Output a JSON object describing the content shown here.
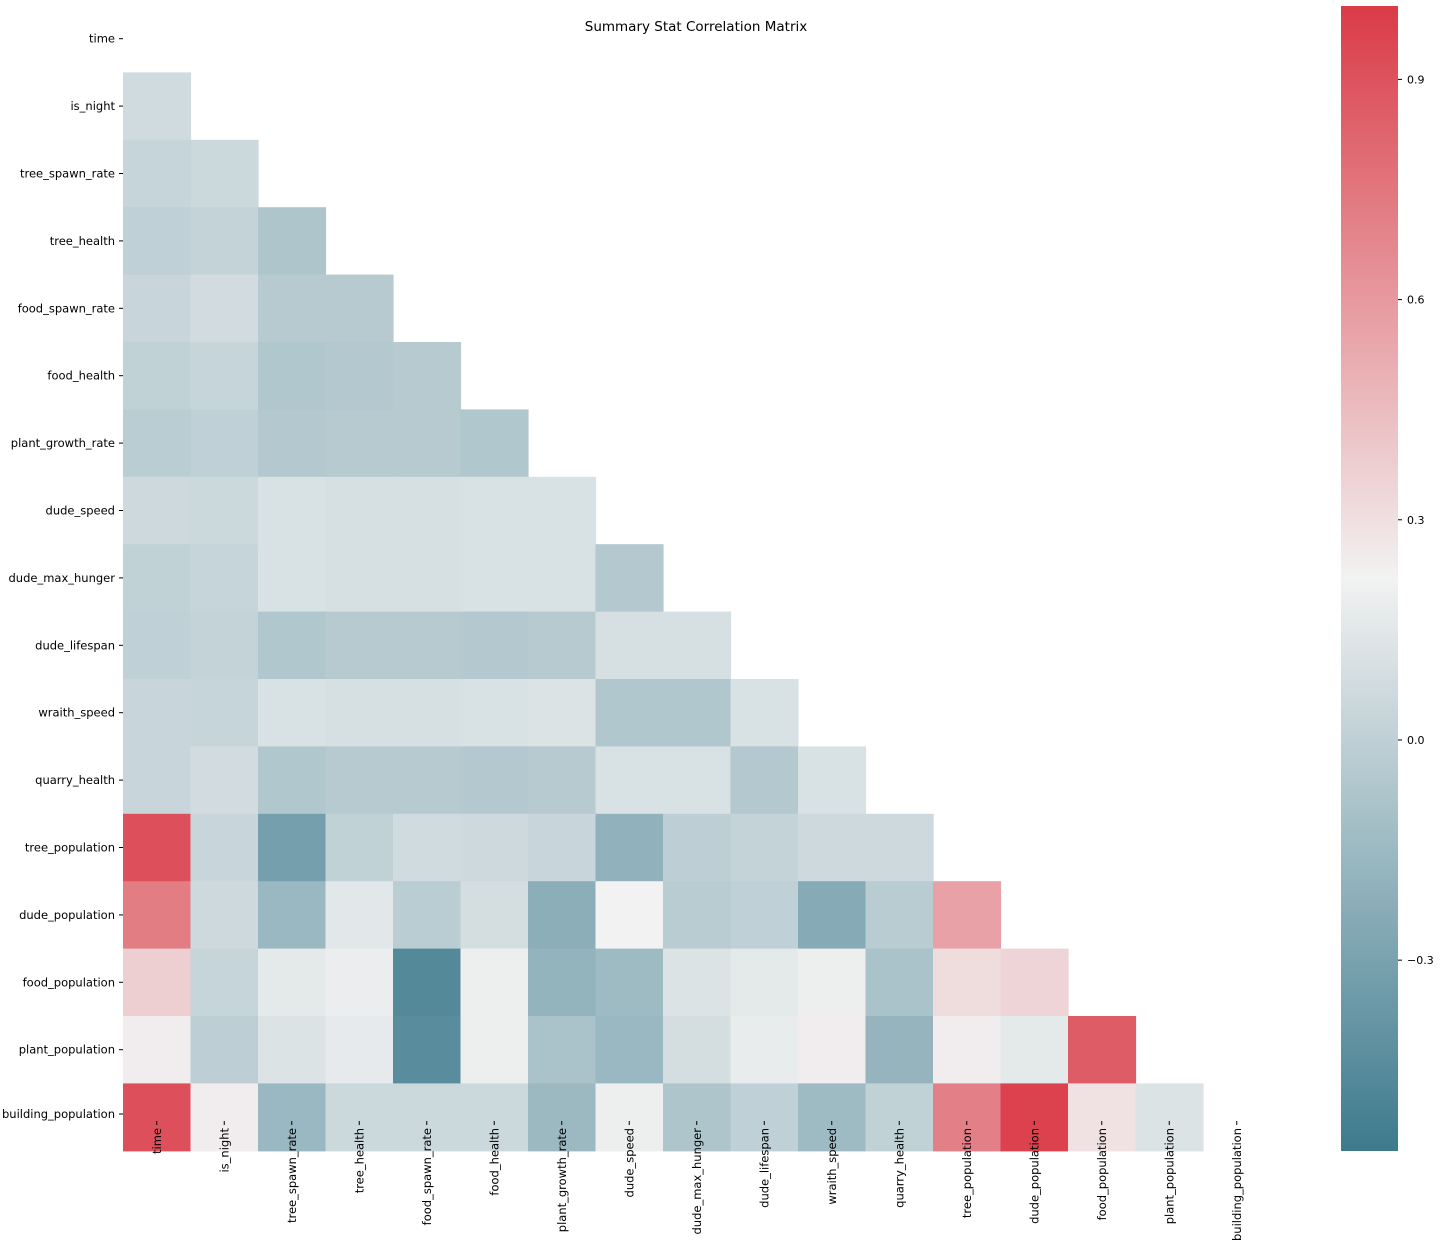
{
  "chart_data": {
    "type": "heatmap",
    "title": "Summary Stat Correlation Matrix",
    "mask": "upper-triangle-including-diagonal",
    "labels": [
      "time",
      "is_night",
      "tree_spawn_rate",
      "tree_health",
      "food_spawn_rate",
      "food_health",
      "plant_growth_rate",
      "dude_speed",
      "dude_max_hunger",
      "dude_lifespan",
      "wraith_speed",
      "quarry_health",
      "tree_population",
      "dude_population",
      "food_population",
      "plant_population",
      "building_population"
    ],
    "matrix": [
      [],
      [
        0.07
      ],
      [
        0.03,
        0.05
      ],
      [
        0.0,
        0.02,
        -0.07
      ],
      [
        0.04,
        0.08,
        -0.04,
        -0.04
      ],
      [
        0.01,
        0.03,
        -0.06,
        -0.05,
        -0.04
      ],
      [
        -0.02,
        0.0,
        -0.05,
        -0.04,
        -0.04,
        -0.06
      ],
      [
        0.06,
        0.05,
        0.11,
        0.1,
        0.1,
        0.11,
        0.11
      ],
      [
        0.01,
        0.03,
        0.11,
        0.1,
        0.1,
        0.11,
        0.11,
        -0.05
      ],
      [
        0.0,
        0.02,
        -0.06,
        -0.04,
        -0.04,
        -0.05,
        -0.04,
        0.1,
        0.1
      ],
      [
        0.04,
        0.03,
        0.11,
        0.1,
        0.1,
        0.11,
        0.12,
        -0.06,
        -0.06,
        0.11
      ],
      [
        0.04,
        0.08,
        -0.06,
        -0.04,
        -0.04,
        -0.05,
        -0.04,
        0.11,
        0.11,
        -0.05,
        0.11
      ],
      [
        0.91,
        0.04,
        -0.32,
        0.01,
        0.07,
        0.06,
        0.04,
        -0.2,
        -0.01,
        0.02,
        0.06,
        0.06
      ],
      [
        0.72,
        0.06,
        -0.16,
        0.15,
        -0.02,
        0.09,
        -0.22,
        0.22,
        -0.03,
        0.0,
        -0.24,
        -0.03,
        0.56
      ],
      [
        0.37,
        0.03,
        0.16,
        0.19,
        -0.46,
        0.2,
        -0.19,
        -0.14,
        0.12,
        0.16,
        0.2,
        -0.09,
        0.31,
        0.35
      ],
      [
        0.24,
        -0.01,
        0.12,
        0.17,
        -0.44,
        0.2,
        -0.09,
        -0.16,
        0.09,
        0.18,
        0.24,
        -0.18,
        0.24,
        0.16,
        0.86
      ],
      [
        0.91,
        0.24,
        -0.16,
        0.05,
        0.05,
        0.05,
        -0.15,
        0.2,
        -0.07,
        0.0,
        -0.14,
        0.01,
        0.71,
        0.97,
        0.29,
        0.12
      ]
    ],
    "vmin": -0.56,
    "vmax": 1.0,
    "colorbar": {
      "ticks": [
        0.9,
        0.6,
        0.3,
        0.0,
        -0.3
      ],
      "tick_labels": [
        "0.9",
        "0.6",
        "0.3",
        "0.0",
        "−0.3"
      ]
    },
    "colors": {
      "low": "#3d7a8d",
      "mid": "#f2f2f2",
      "high": "#da3b47"
    }
  }
}
